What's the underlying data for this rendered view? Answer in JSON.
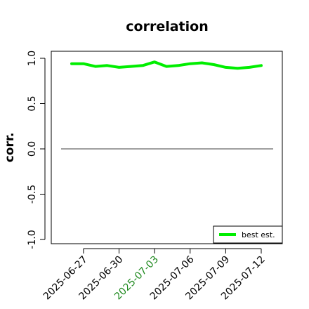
{
  "chart_data": {
    "type": "line",
    "title": "correlation",
    "xlabel": "",
    "ylabel": "corr.",
    "ylim": [
      -1.0,
      1.0
    ],
    "yticks": [
      "-1.0",
      "-0.5",
      "0.0",
      "0.5",
      "1.0"
    ],
    "x": [
      "2025-06-26",
      "2025-06-27",
      "2025-06-28",
      "2025-06-29",
      "2025-06-30",
      "2025-07-01",
      "2025-07-02",
      "2025-07-03",
      "2025-07-04",
      "2025-07-05",
      "2025-07-06",
      "2025-07-07",
      "2025-07-08",
      "2025-07-09",
      "2025-07-10",
      "2025-07-11",
      "2025-07-12"
    ],
    "xtick_labels": [
      {
        "label": "2025-06-27",
        "color": "#000000"
      },
      {
        "label": "2025-06-30",
        "color": "#000000"
      },
      {
        "label": "2025-07-03",
        "color": "#228b22"
      },
      {
        "label": "2025-07-06",
        "color": "#000000"
      },
      {
        "label": "2025-07-09",
        "color": "#000000"
      },
      {
        "label": "2025-07-12",
        "color": "#000000"
      }
    ],
    "reference_line": {
      "y": 0.0,
      "color": "#666666"
    },
    "series": [
      {
        "name": "best est.",
        "color": "#00ee00",
        "values": [
          0.94,
          0.94,
          0.91,
          0.92,
          0.9,
          0.91,
          0.92,
          0.96,
          0.91,
          0.92,
          0.94,
          0.95,
          0.93,
          0.9,
          0.89,
          0.9,
          0.92
        ]
      }
    ],
    "legend": {
      "position": "bottom-right"
    },
    "grid": false
  }
}
